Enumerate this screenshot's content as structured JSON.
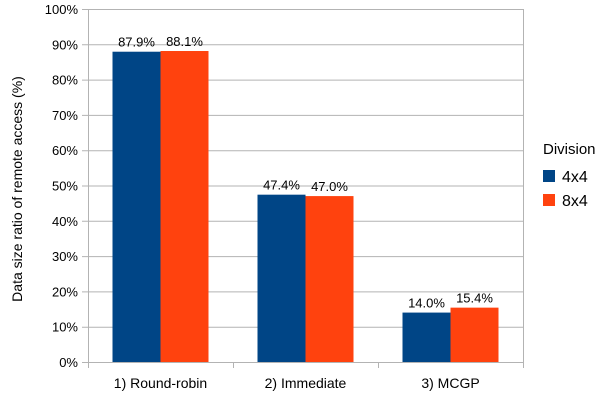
{
  "chart_data": {
    "type": "bar",
    "title": "",
    "xlabel": "",
    "ylabel": "Data size ratio of remote access (%)",
    "categories": [
      "1) Round-robin",
      "2) Immediate",
      "3) MCGP"
    ],
    "series": [
      {
        "name": "4x4",
        "values": [
          87.9,
          47.4,
          14.0
        ],
        "labels": [
          "87.9%",
          "47.4%",
          "14.0%"
        ],
        "color": "#004586"
      },
      {
        "name": "8x4",
        "values": [
          88.1,
          47.0,
          15.4
        ],
        "labels": [
          "88.1%",
          "47.0%",
          "15.4%"
        ],
        "color": "#ff420e"
      }
    ],
    "ylim": [
      0,
      100
    ],
    "yticks": [
      0,
      10,
      20,
      30,
      40,
      50,
      60,
      70,
      80,
      90,
      100
    ],
    "ytick_labels": [
      "0%",
      "10%",
      "20%",
      "30%",
      "40%",
      "50%",
      "60%",
      "70%",
      "80%",
      "90%",
      "100%"
    ],
    "grid": true,
    "legend": {
      "title": "Division",
      "position": "right"
    }
  }
}
